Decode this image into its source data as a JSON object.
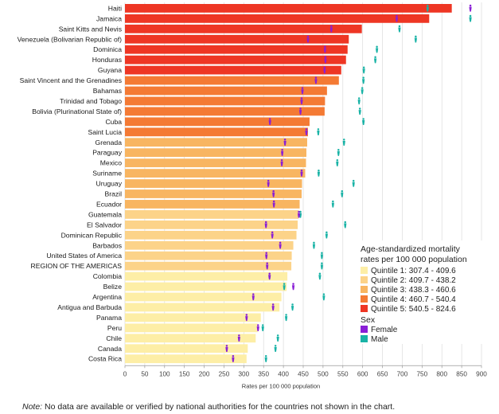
{
  "chart_data": {
    "type": "bar",
    "xlabel": "Rates per 100 000 population",
    "xlim": [
      0,
      900
    ],
    "xticks": [
      0,
      50,
      100,
      150,
      200,
      250,
      300,
      350,
      400,
      450,
      500,
      550,
      600,
      650,
      700,
      750,
      800,
      850,
      900
    ],
    "grid": true,
    "categories": [
      "Haiti",
      "Jamaica",
      "Saint Kitts and Nevis",
      "Venezuela (Bolivarian Republic of)",
      "Dominica",
      "Honduras",
      "Guyana",
      "Saint Vincent and the Grenadines",
      "Bahamas",
      "Trinidad and Tobago",
      "Bolivia (Plurinational State of)",
      "Cuba",
      "Saint Lucia",
      "Grenada",
      "Paraguay",
      "Mexico",
      "Suriname",
      "Uruguay",
      "Brazil",
      "Ecuador",
      "Guatemala",
      "El Salvador",
      "Dominican Republic",
      "Barbados",
      "United States of America",
      "REGION OF THE AMERICAS",
      "Colombia",
      "Belize",
      "Argentina",
      "Antigua and Barbuda",
      "Panama",
      "Peru",
      "Chile",
      "Canada",
      "Costa Rica"
    ],
    "values": [
      825,
      768,
      598,
      565,
      562,
      558,
      546,
      540,
      510,
      505,
      504,
      466,
      462,
      460,
      458,
      457,
      455,
      447,
      446,
      441,
      438,
      436,
      433,
      425,
      421,
      420,
      410,
      408,
      395,
      390,
      343,
      335,
      330,
      310,
      307
    ],
    "female": [
      872,
      686,
      521,
      462,
      505,
      506,
      504,
      482,
      448,
      446,
      443,
      366,
      458,
      404,
      397,
      396,
      446,
      362,
      375,
      376,
      439,
      356,
      372,
      392,
      357,
      359,
      365,
      425,
      324,
      374,
      307,
      336,
      288,
      257,
      273
    ],
    "male": [
      764,
      872,
      693,
      734,
      636,
      632,
      603,
      602,
      599,
      591,
      593,
      602,
      488,
      553,
      539,
      536,
      489,
      577,
      548,
      525,
      443,
      556,
      509,
      477,
      497,
      497,
      492,
      402,
      502,
      423,
      407,
      348,
      386,
      380,
      356
    ],
    "color_scale": [
      "#fdeea6",
      "#fcd389",
      "#f8b561",
      "#f47a34",
      "#ee3624"
    ],
    "legend": {
      "title": "Age-standardized mortality rates per 100 000 population",
      "title_lines": [
        "Age-standardized mortality",
        "rates per 100 000 population"
      ],
      "quintiles": [
        {
          "label": "Quintile 1: 307.4 - 409.6",
          "min": 307.4,
          "max": 409.6,
          "color": "#fdeea6"
        },
        {
          "label": "Quintile 2: 409.7 - 438.2",
          "min": 409.7,
          "max": 438.2,
          "color": "#fcd389"
        },
        {
          "label": "Quintile 3: 438.3 - 460.6",
          "min": 438.3,
          "max": 460.6,
          "color": "#f8b561"
        },
        {
          "label": "Quintile 4: 460.7 - 540.4",
          "min": 460.7,
          "max": 540.4,
          "color": "#f47a34"
        },
        {
          "label": "Quintile 5: 540.5 - 824.6",
          "min": 540.5,
          "max": 824.6,
          "color": "#ee3624"
        }
      ],
      "sex_title": "Sex",
      "sex": [
        {
          "label": "Female",
          "color": "#8a1fd6",
          "icon": "female-icon"
        },
        {
          "label": "Male",
          "color": "#19b3a6",
          "icon": "male-icon"
        }
      ],
      "placement": "right"
    }
  },
  "note": {
    "prefix": "Note:",
    "text": " No data are available or verified by national authorities for the countries not shown in the chart."
  }
}
